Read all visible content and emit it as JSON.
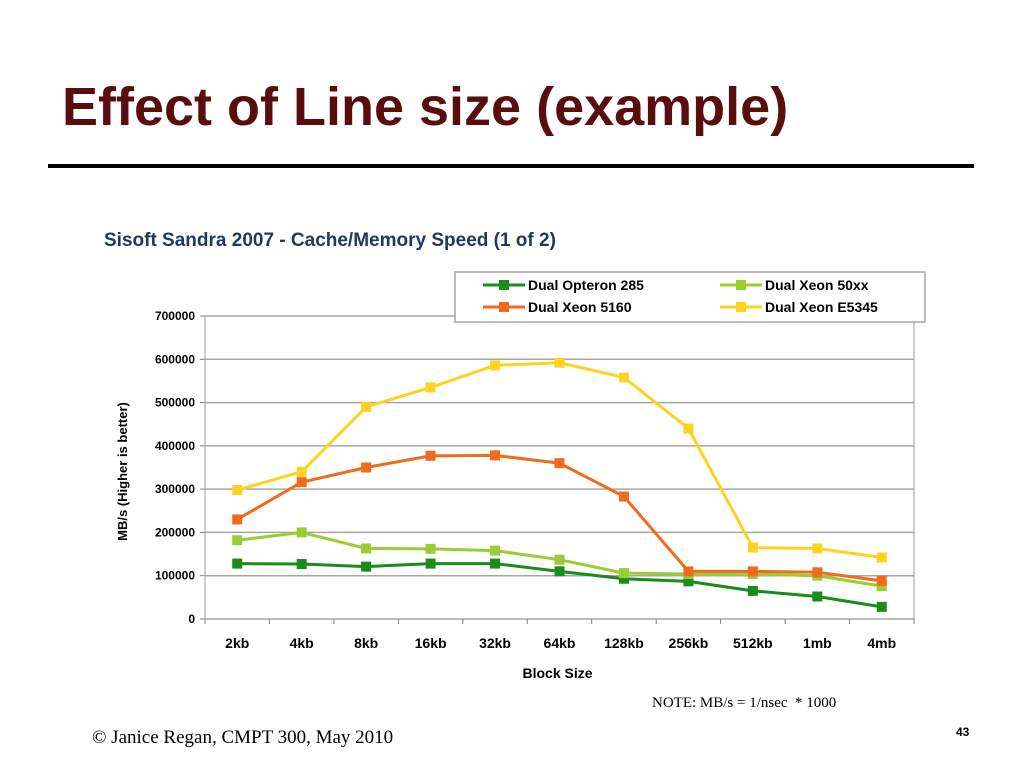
{
  "slide": {
    "title": "Effect of Line size (example)",
    "note": "NOTE: MB/s = 1/nsec  * 1000",
    "footer": "© Janice Regan, CMPT 300, May 2010",
    "page_number": "43"
  },
  "chart_data": {
    "type": "line",
    "title": "Sisoft Sandra 2007 - Cache/Memory Speed (1 of 2)",
    "xlabel": "Block Size",
    "ylabel": "MB/s (Higher is better)",
    "ylim": [
      0,
      700000
    ],
    "yticks": [
      0,
      100000,
      200000,
      300000,
      400000,
      500000,
      600000,
      700000
    ],
    "grid": true,
    "legend_position": "top-right",
    "categories": [
      "2kb",
      "4kb",
      "8kb",
      "16kb",
      "32kb",
      "64kb",
      "128kb",
      "256kb",
      "512kb",
      "1mb",
      "4mb"
    ],
    "series": [
      {
        "name": "Dual Opteron 285",
        "color": "#1a8c1a",
        "values": [
          128000,
          127000,
          121000,
          128000,
          128000,
          110000,
          93000,
          87000,
          65000,
          52000,
          28000
        ]
      },
      {
        "name": "Dual Xeon 50xx",
        "color": "#9acd32",
        "values": [
          182000,
          200000,
          163000,
          162000,
          158000,
          137000,
          106000,
          104000,
          104000,
          100000,
          76000
        ]
      },
      {
        "name": "Dual Xeon 5160",
        "color": "#f26b1d",
        "values": [
          230000,
          316000,
          350000,
          377000,
          378000,
          360000,
          283000,
          110000,
          110000,
          108000,
          88000
        ]
      },
      {
        "name": "Dual Xeon E5345",
        "color": "#ffd21f",
        "values": [
          298000,
          340000,
          490000,
          535000,
          586000,
          592000,
          558000,
          440000,
          165000,
          163000,
          142000
        ]
      }
    ]
  }
}
